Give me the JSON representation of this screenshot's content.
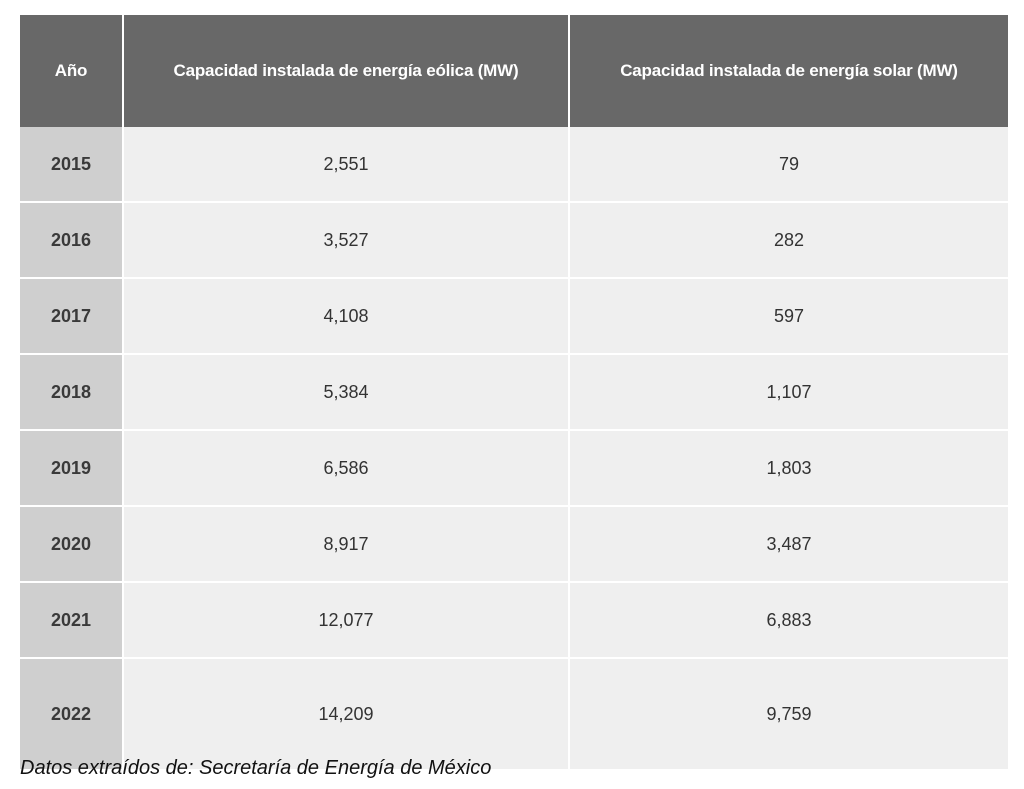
{
  "table": {
    "headers": [
      "Año",
      "Capacidad instalada de energía eólica (MW)",
      "Capacidad instalada de energía solar (MW)"
    ],
    "rows": [
      {
        "year": "2015",
        "wind": "2,551",
        "solar": "79"
      },
      {
        "year": "2016",
        "wind": "3,527",
        "solar": "282"
      },
      {
        "year": "2017",
        "wind": "4,108",
        "solar": "597"
      },
      {
        "year": "2018",
        "wind": "5,384",
        "solar": "1,107"
      },
      {
        "year": "2019",
        "wind": "6,586",
        "solar": "1,803"
      },
      {
        "year": "2020",
        "wind": "8,917",
        "solar": "3,487"
      },
      {
        "year": "2021",
        "wind": "12,077",
        "solar": "6,883"
      },
      {
        "year": "2022",
        "wind": "14,209",
        "solar": "9,759"
      }
    ]
  },
  "source_note": "Datos extraídos de: Secretaría de Energía de México",
  "colors": {
    "header_bg": "#686868",
    "year_cell_bg": "#cfcfcf",
    "data_cell_bg": "#efefef"
  }
}
